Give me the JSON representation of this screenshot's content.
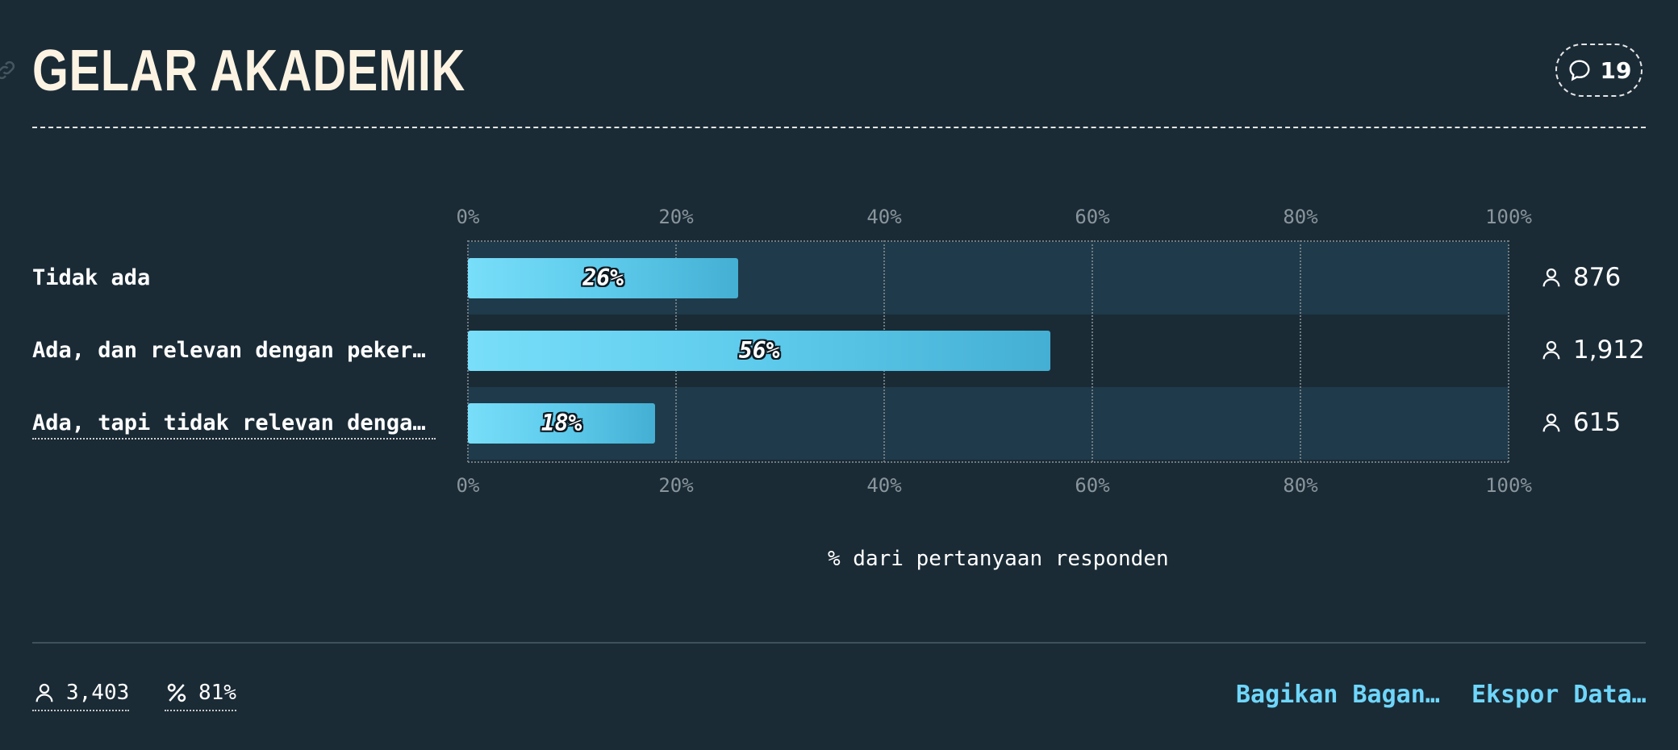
{
  "header": {
    "title": "GELAR AKADEMIK",
    "comment_count": "19"
  },
  "chart_data": {
    "type": "bar",
    "orientation": "horizontal",
    "categories": [
      "Tidak ada",
      "Ada, dan relevan dengan pekerja…",
      "Ada, tapi tidak relevan dengan …"
    ],
    "values": [
      26,
      56,
      18
    ],
    "value_labels": [
      "26%",
      "56%",
      "18%"
    ],
    "counts": [
      "876",
      "1,912",
      "615"
    ],
    "xlim": [
      0,
      100
    ],
    "ticks": [
      "0%",
      "20%",
      "40%",
      "60%",
      "80%",
      "100%"
    ],
    "xlabel": "% dari pertanyaan responden",
    "ylabel": "",
    "grid": true,
    "bar_color": "#5ecbec"
  },
  "footer": {
    "respondents": "3,403",
    "percent": "81%",
    "share_label": "Bagikan Bagan…",
    "export_label": "Ekspor Data…"
  },
  "icons": {
    "comment": "speech-bubble-icon",
    "person": "person-icon",
    "percent": "percent-icon",
    "link": "link-icon"
  }
}
